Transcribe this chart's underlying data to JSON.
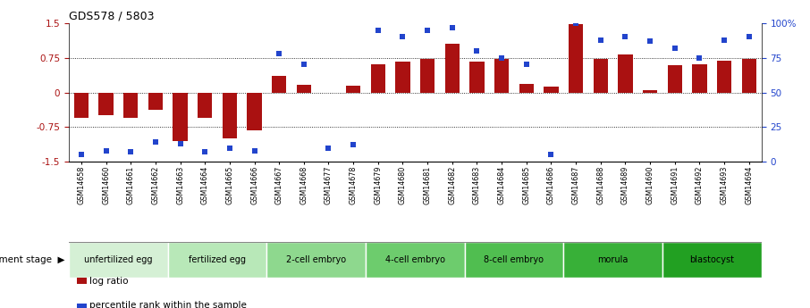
{
  "title": "GDS578 / 5803",
  "samples": [
    "GSM14658",
    "GSM14660",
    "GSM14661",
    "GSM14662",
    "GSM14663",
    "GSM14664",
    "GSM14665",
    "GSM14666",
    "GSM14667",
    "GSM14668",
    "GSM14677",
    "GSM14678",
    "GSM14679",
    "GSM14680",
    "GSM14681",
    "GSM14682",
    "GSM14683",
    "GSM14684",
    "GSM14685",
    "GSM14686",
    "GSM14687",
    "GSM14688",
    "GSM14689",
    "GSM14690",
    "GSM14691",
    "GSM14692",
    "GSM14693",
    "GSM14694"
  ],
  "log_ratio": [
    -0.55,
    -0.5,
    -0.55,
    -0.38,
    -1.05,
    -0.55,
    -1.0,
    -0.82,
    0.35,
    0.17,
    0.0,
    0.15,
    0.6,
    0.67,
    0.72,
    1.05,
    0.67,
    0.72,
    0.18,
    0.12,
    1.48,
    0.72,
    0.82,
    0.05,
    0.58,
    0.6,
    0.68,
    0.72
  ],
  "percentile": [
    5,
    8,
    7,
    14,
    13,
    7,
    10,
    8,
    78,
    70,
    10,
    12,
    95,
    90,
    95,
    97,
    80,
    75,
    70,
    5,
    100,
    88,
    90,
    87,
    82,
    75,
    88,
    90
  ],
  "stages": [
    {
      "label": "unfertilized egg",
      "start": 0,
      "end": 4,
      "color": "#d5f0d5"
    },
    {
      "label": "fertilized egg",
      "start": 4,
      "end": 8,
      "color": "#b8e8b8"
    },
    {
      "label": "2-cell embryo",
      "start": 8,
      "end": 12,
      "color": "#8ed88e"
    },
    {
      "label": "4-cell embryo",
      "start": 12,
      "end": 16,
      "color": "#6dcc6d"
    },
    {
      "label": "8-cell embryo",
      "start": 16,
      "end": 20,
      "color": "#50be50"
    },
    {
      "label": "morula",
      "start": 20,
      "end": 24,
      "color": "#38b038"
    },
    {
      "label": "blastocyst",
      "start": 24,
      "end": 28,
      "color": "#22a022"
    }
  ],
  "bar_color": "#aa1111",
  "dot_color": "#2244cc",
  "ylim_left": [
    -1.5,
    1.5
  ],
  "ylim_right": [
    0,
    100
  ],
  "yticks_left": [
    -1.5,
    -0.75,
    0,
    0.75,
    1.5
  ],
  "yticks_right": [
    0,
    25,
    50,
    75,
    100
  ],
  "hline_vals": [
    -0.75,
    0,
    0.75
  ],
  "background_color": "#ffffff"
}
